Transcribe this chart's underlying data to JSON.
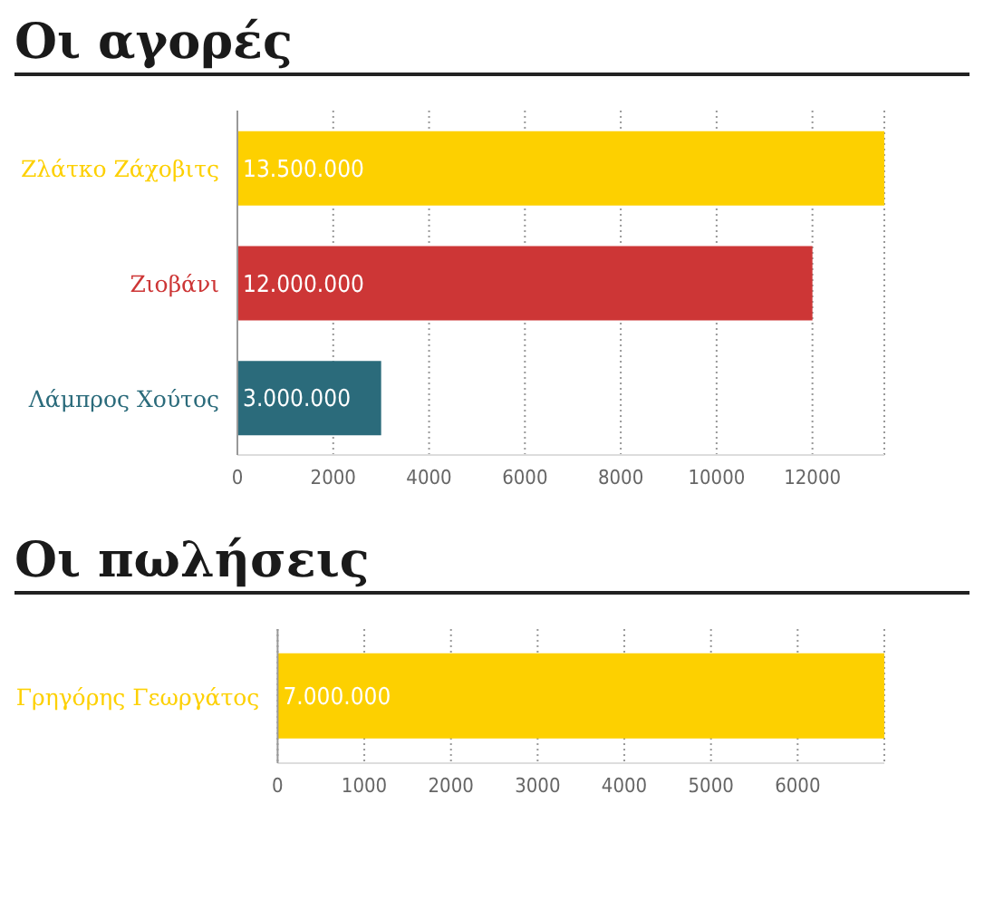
{
  "chart_data": [
    {
      "type": "bar",
      "orientation": "horizontal",
      "title": "Οι αγορές",
      "categories": [
        "Ζλάτκο Ζάχοβιτς",
        "Ζιοβάνι",
        "Λάμπρος Χούτος"
      ],
      "values": [
        13500,
        12000,
        3000
      ],
      "colors": [
        "#fdd000",
        "#cd3636",
        "#2b6b7b"
      ],
      "annotations": [
        "13.500.000",
        "12.000.000",
        "3.000.000"
      ],
      "xlim": [
        0,
        13500
      ],
      "xticks": [
        0,
        2000,
        4000,
        6000,
        8000,
        10000,
        12000
      ],
      "grid": "x"
    },
    {
      "type": "bar",
      "orientation": "horizontal",
      "title": "Οι πωλήσεις",
      "categories": [
        "Γρηγόρης Γεωργάτος"
      ],
      "values": [
        7000
      ],
      "colors": [
        "#fdd000"
      ],
      "annotations": [
        "7.000.000"
      ],
      "xlim": [
        0,
        7000
      ],
      "xticks": [
        0,
        1000,
        2000,
        3000,
        4000,
        5000,
        6000
      ],
      "grid": "x"
    }
  ]
}
